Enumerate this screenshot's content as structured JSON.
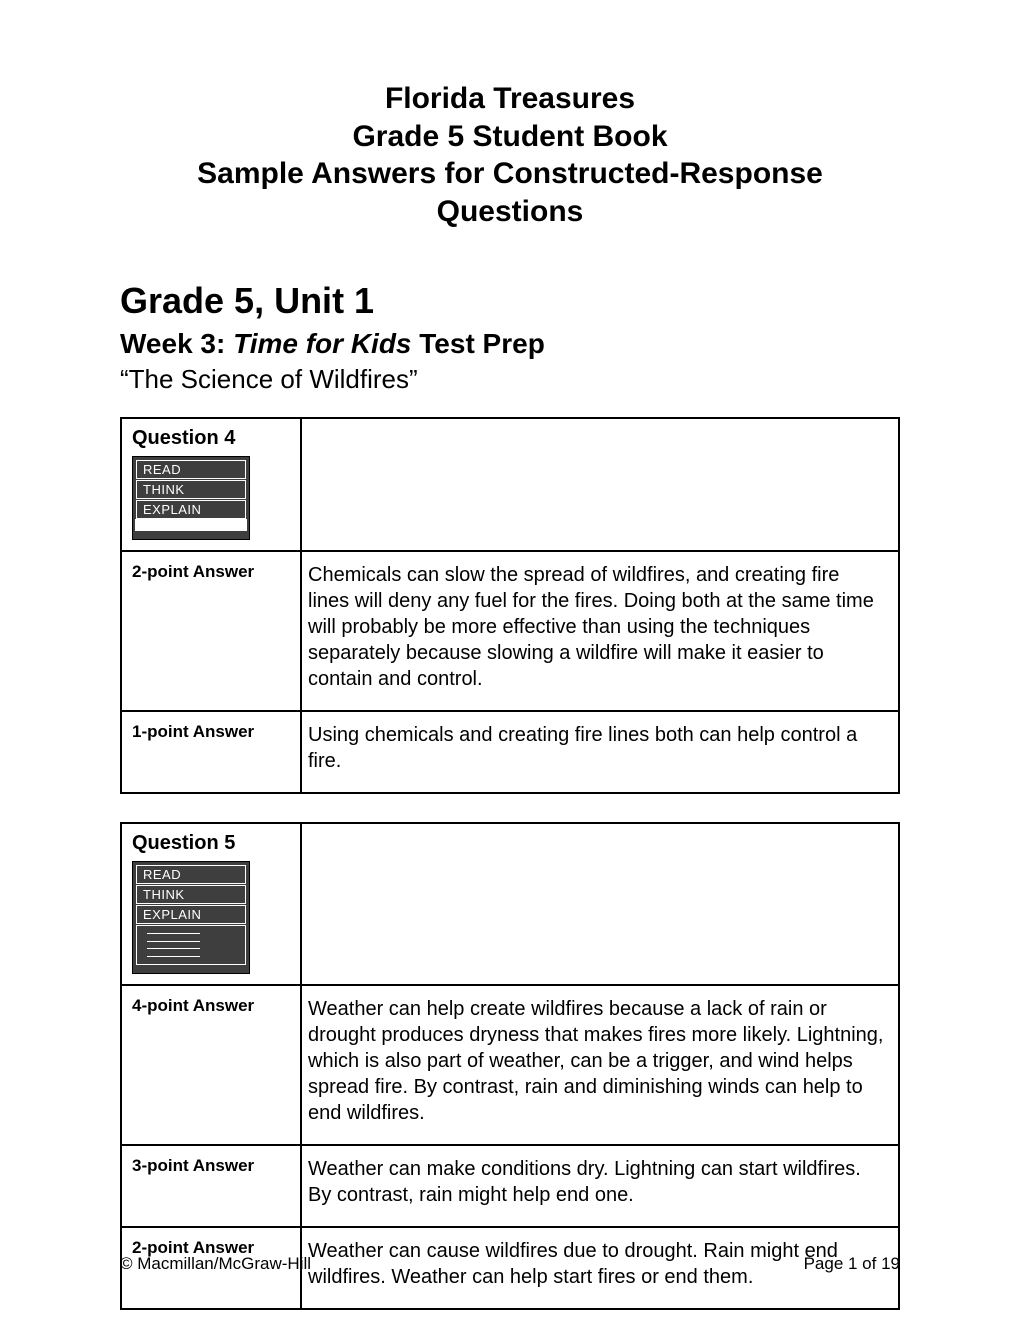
{
  "title": {
    "line1": "Florida Treasures",
    "line2": "Grade 5 Student Book",
    "line3": "Sample Answers for Constructed-Response Questions"
  },
  "unit_heading": "Grade 5, Unit 1",
  "week_prefix": "Week 3: ",
  "week_italic": "Time for Kids",
  "week_suffix": " Test Prep",
  "story": "“The Science of Wildfires”",
  "rte": {
    "read": "READ",
    "think": "THINK",
    "explain": "EXPLAIN"
  },
  "q4": {
    "label": "Question 4",
    "rows": [
      {
        "label": "2-point Answer",
        "text": "Chemicals can slow the spread of wildfires, and creating fire lines will deny any fuel for the fires. Doing both at the same time will probably be more effective than using the techniques separately because slowing a wildfire will make it easier to contain and control."
      },
      {
        "label": "1-point Answer",
        "text": "Using chemicals and creating fire lines both can help control a fire."
      }
    ]
  },
  "q5": {
    "label": "Question 5",
    "rows": [
      {
        "label": "4-point Answer",
        "text": "Weather can help create wildfires because a lack of rain or drought produces dryness that  makes fires more likely. Lightning, which is also part of weather, can be a trigger, and wind helps spread fire. By contrast, rain and diminishing winds can help to end wildfires."
      },
      {
        "label": "3-point Answer",
        "text": "Weather can make conditions dry. Lightning can start wildfires. By contrast, rain might help end one."
      },
      {
        "label": "2-point Answer",
        "text": "Weather can cause wildfires due to drought. Rain might end wildfires. Weather can help start fires or end them."
      }
    ]
  },
  "footer": {
    "copyright": "© Macmillan/McGraw-Hill",
    "page": "Page 1 of 19"
  }
}
